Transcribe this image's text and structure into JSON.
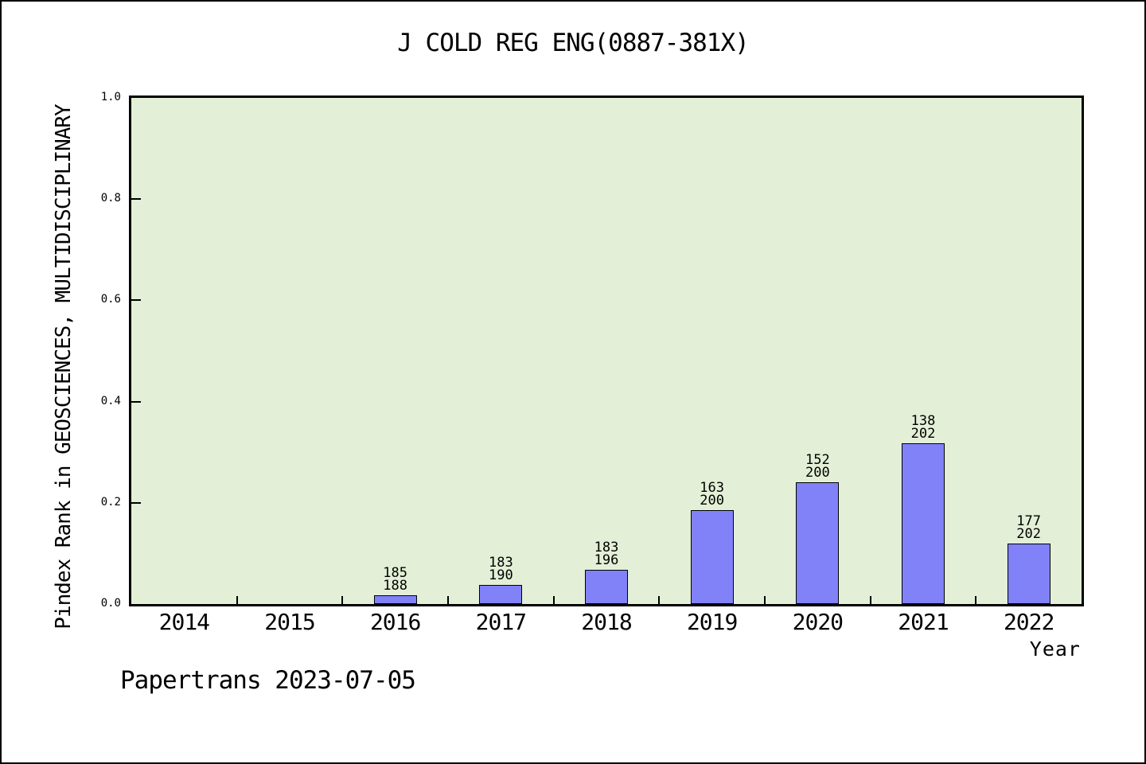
{
  "page": {
    "footer": "Papertrans 2023-07-05"
  },
  "chart_data": {
    "type": "bar",
    "title": "J COLD REG ENG(0887-381X)",
    "xlabel": "Year",
    "ylabel": "Pindex Rank in GEOSCIENCES, MULTIDISCIPLINARY",
    "categories": [
      "2014",
      "2015",
      "2016",
      "2017",
      "2018",
      "2019",
      "2020",
      "2021",
      "2022"
    ],
    "values": [
      null,
      null,
      0.017,
      0.037,
      0.067,
      0.185,
      0.24,
      0.317,
      0.12
    ],
    "annotations": [
      null,
      null,
      {
        "rank": "185",
        "total": "188"
      },
      {
        "rank": "183",
        "total": "190"
      },
      {
        "rank": "183",
        "total": "196"
      },
      {
        "rank": "163",
        "total": "200"
      },
      {
        "rank": "152",
        "total": "200"
      },
      {
        "rank": "138",
        "total": "202"
      },
      {
        "rank": "177",
        "total": "202"
      }
    ],
    "ylim": [
      0,
      1
    ],
    "y_ticks": [
      0,
      0.2,
      0.4,
      0.6,
      0.8,
      1
    ],
    "y_tick_labels": [
      "0.0",
      "0.2",
      "0.4",
      "0.6",
      "0.8",
      "1.0"
    ],
    "grid": "off",
    "legend": "none",
    "colors": {
      "bar_fill": "#8182f8",
      "bar_edge": "#000000",
      "plot_bg": "#e3efd6",
      "text": "#000000"
    }
  }
}
